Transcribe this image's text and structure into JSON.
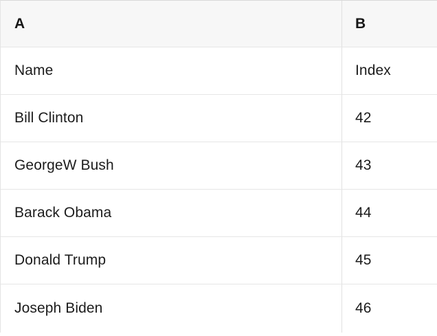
{
  "table": {
    "column_headers": [
      {
        "label": "A"
      },
      {
        "label": "B"
      }
    ],
    "rows": [
      {
        "name": "Name",
        "index": "Index"
      },
      {
        "name": "Bill Clinton",
        "index": "42"
      },
      {
        "name": "GeorgeW Bush",
        "index": "43"
      },
      {
        "name": "Barack Obama",
        "index": "44"
      },
      {
        "name": "Donald Trump",
        "index": "45"
      },
      {
        "name": "Joseph Biden",
        "index": "46"
      }
    ],
    "colors": {
      "header_background": "#f7f7f7",
      "grid_border": "#e2e2e2",
      "text": "#1c1c1c"
    }
  }
}
